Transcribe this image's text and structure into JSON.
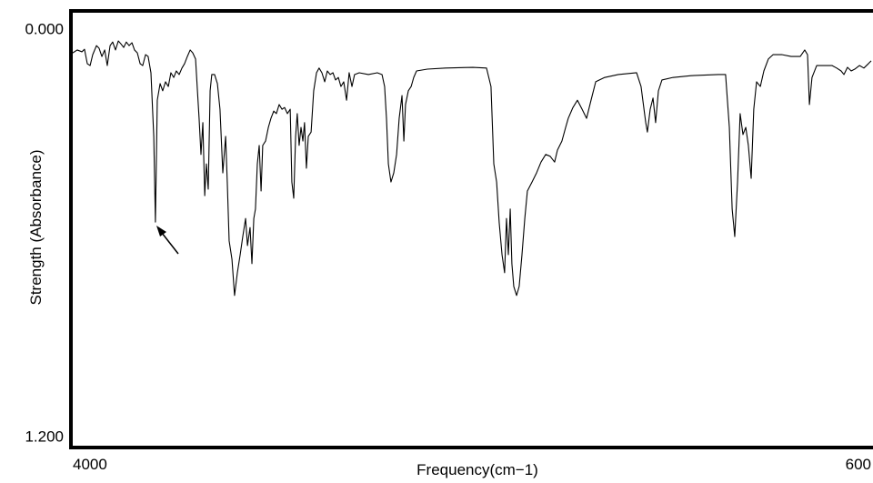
{
  "chart_data": {
    "type": "line",
    "x_label": "Frequency(cm−1)",
    "y_label": "Strength  (Absorbance)",
    "xlim": [
      4000,
      600
    ],
    "xticks": [
      4000,
      600
    ],
    "ylim": [
      0,
      1.2
    ],
    "yticks": [
      {
        "value": 0,
        "label": "0.000"
      },
      {
        "value": 1.2,
        "label": "1.200"
      }
    ],
    "y_inverted": true,
    "grid": false,
    "color": "#000000",
    "x": [
      4000,
      3981,
      3961,
      3950,
      3938,
      3926,
      3915,
      3899,
      3888,
      3876,
      3864,
      3853,
      3841,
      3830,
      3818,
      3806,
      3795,
      3783,
      3772,
      3760,
      3748,
      3737,
      3725,
      3713,
      3702,
      3690,
      3679,
      3667,
      3655,
      3648,
      3640,
      3628,
      3617,
      3605,
      3593,
      3582,
      3570,
      3559,
      3547,
      3535,
      3524,
      3512,
      3500,
      3489,
      3477,
      3469,
      3462,
      3454,
      3446,
      3438,
      3431,
      3423,
      3415,
      3408,
      3396,
      3384,
      3373,
      3361,
      3349,
      3342,
      3334,
      3322,
      3311,
      3299,
      3287,
      3276,
      3264,
      3256,
      3245,
      3237,
      3229,
      3222,
      3214,
      3206,
      3198,
      3191,
      3179,
      3167,
      3156,
      3144,
      3133,
      3121,
      3109,
      3098,
      3086,
      3074,
      3067,
      3059,
      3051,
      3044,
      3036,
      3028,
      3020,
      3013,
      3005,
      2997,
      2985,
      2974,
      2962,
      2951,
      2939,
      2927,
      2916,
      2904,
      2892,
      2881,
      2869,
      2858,
      2846,
      2834,
      2823,
      2811,
      2800,
      2780,
      2741,
      2703,
      2683,
      2672,
      2664,
      2656,
      2645,
      2633,
      2621,
      2610,
      2598,
      2590,
      2583,
      2571,
      2559,
      2548,
      2536,
      2490,
      2412,
      2296,
      2238,
      2219,
      2207,
      2195,
      2184,
      2172,
      2161,
      2153,
      2145,
      2137,
      2130,
      2122,
      2110,
      2099,
      2087,
      2075,
      2064,
      2044,
      2025,
      2006,
      1986,
      1967,
      1948,
      1936,
      1917,
      1901,
      1890,
      1870,
      1851,
      1831,
      1812,
      1793,
      1773,
      1735,
      1677,
      1599,
      1580,
      1560,
      1553,
      1541,
      1529,
      1518,
      1506,
      1491,
      1444,
      1367,
      1251,
      1220,
      1204,
      1192,
      1181,
      1169,
      1158,
      1146,
      1134,
      1123,
      1111,
      1100,
      1088,
      1072,
      1057,
      1038,
      1018,
      979,
      941,
      902,
      883,
      871,
      863,
      852,
      832,
      805,
      767,
      747,
      728,
      716,
      701,
      685,
      670,
      650,
      631,
      612,
      600
    ],
    "values": [
      0.111,
      0.103,
      0.108,
      0.101,
      0.141,
      0.146,
      0.116,
      0.091,
      0.098,
      0.121,
      0.103,
      0.146,
      0.091,
      0.081,
      0.103,
      0.078,
      0.086,
      0.096,
      0.081,
      0.091,
      0.083,
      0.103,
      0.111,
      0.141,
      0.146,
      0.116,
      0.121,
      0.166,
      0.342,
      0.579,
      0.242,
      0.196,
      0.216,
      0.191,
      0.204,
      0.166,
      0.179,
      0.161,
      0.171,
      0.153,
      0.141,
      0.121,
      0.103,
      0.111,
      0.128,
      0.216,
      0.292,
      0.392,
      0.304,
      0.506,
      0.418,
      0.488,
      0.216,
      0.171,
      0.171,
      0.196,
      0.267,
      0.443,
      0.342,
      0.468,
      0.631,
      0.682,
      0.782,
      0.719,
      0.669,
      0.619,
      0.569,
      0.644,
      0.594,
      0.694,
      0.569,
      0.543,
      0.418,
      0.367,
      0.493,
      0.367,
      0.355,
      0.317,
      0.292,
      0.272,
      0.279,
      0.254,
      0.267,
      0.262,
      0.279,
      0.267,
      0.468,
      0.513,
      0.342,
      0.279,
      0.367,
      0.317,
      0.355,
      0.304,
      0.43,
      0.342,
      0.33,
      0.216,
      0.166,
      0.153,
      0.166,
      0.191,
      0.161,
      0.171,
      0.166,
      0.186,
      0.179,
      0.204,
      0.191,
      0.242,
      0.166,
      0.204,
      0.171,
      0.166,
      0.171,
      0.166,
      0.171,
      0.204,
      0.292,
      0.418,
      0.468,
      0.443,
      0.392,
      0.292,
      0.229,
      0.355,
      0.254,
      0.216,
      0.204,
      0.179,
      0.161,
      0.156,
      0.153,
      0.151,
      0.153,
      0.204,
      0.418,
      0.468,
      0.581,
      0.669,
      0.719,
      0.569,
      0.669,
      0.543,
      0.694,
      0.757,
      0.782,
      0.757,
      0.669,
      0.569,
      0.493,
      0.468,
      0.443,
      0.413,
      0.392,
      0.397,
      0.413,
      0.38,
      0.355,
      0.317,
      0.292,
      0.262,
      0.242,
      0.267,
      0.292,
      0.242,
      0.191,
      0.179,
      0.171,
      0.166,
      0.204,
      0.304,
      0.33,
      0.267,
      0.236,
      0.304,
      0.216,
      0.186,
      0.179,
      0.174,
      0.171,
      0.171,
      0.317,
      0.543,
      0.619,
      0.468,
      0.279,
      0.337,
      0.317,
      0.367,
      0.458,
      0.267,
      0.191,
      0.204,
      0.161,
      0.128,
      0.116,
      0.116,
      0.121,
      0.121,
      0.103,
      0.116,
      0.254,
      0.179,
      0.146,
      0.146,
      0.146,
      0.153,
      0.161,
      0.171,
      0.151,
      0.161,
      0.156,
      0.146,
      0.153,
      0.141,
      0.133
    ]
  }
}
